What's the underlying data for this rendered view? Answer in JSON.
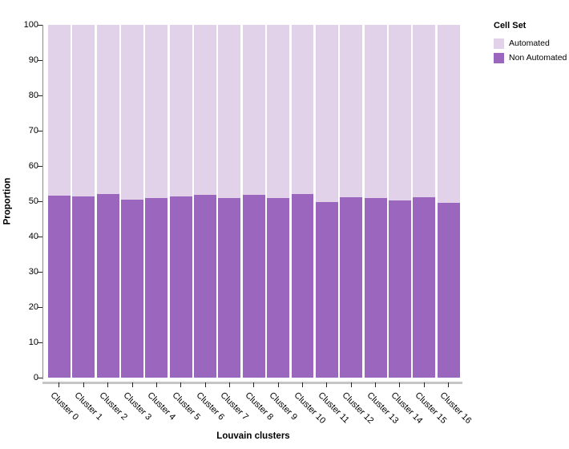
{
  "chart_data": {
    "type": "bar",
    "stacked": true,
    "title": "",
    "xlabel": "Louvain clusters",
    "ylabel": "Proportion",
    "ylim": [
      0,
      100
    ],
    "yticks": [
      0,
      10,
      20,
      30,
      40,
      50,
      60,
      70,
      80,
      90,
      100
    ],
    "grid": false,
    "categories": [
      "Cluster 0",
      "Cluster 1",
      "Cluster 2",
      "Cluster 3",
      "Cluster 4",
      "Cluster 5",
      "Cluster 6",
      "Cluster 7",
      "Cluster 8",
      "Cluster 9",
      "Cluster 10",
      "Cluster 11",
      "Cluster 12",
      "Cluster 13",
      "Cluster 14",
      "Cluster 15",
      "Cluster 16"
    ],
    "series": [
      {
        "name": "Automated",
        "color": "#e2d2e9",
        "values": [
          48.5,
          48.6,
          48.0,
          49.6,
          49.0,
          48.6,
          48.1,
          49.2,
          48.2,
          49.2,
          48.0,
          50.3,
          48.8,
          49.0,
          49.8,
          48.8,
          50.4
        ]
      },
      {
        "name": "Non Automated",
        "color": "#9b67be",
        "values": [
          51.5,
          51.4,
          52.0,
          50.4,
          51.0,
          51.4,
          51.9,
          50.8,
          51.8,
          50.8,
          52.0,
          49.7,
          51.2,
          51.0,
          50.2,
          51.2,
          49.6
        ]
      }
    ],
    "legend": {
      "title": "Cell Set",
      "position": "top-right",
      "items": [
        "Automated",
        "Non Automated"
      ]
    }
  },
  "colors": {
    "background": "#ffffff",
    "y_axis_line": "#888888",
    "x_axis_line": "#c6c6c6",
    "tick_mark": "#222222",
    "text": "#000000"
  }
}
